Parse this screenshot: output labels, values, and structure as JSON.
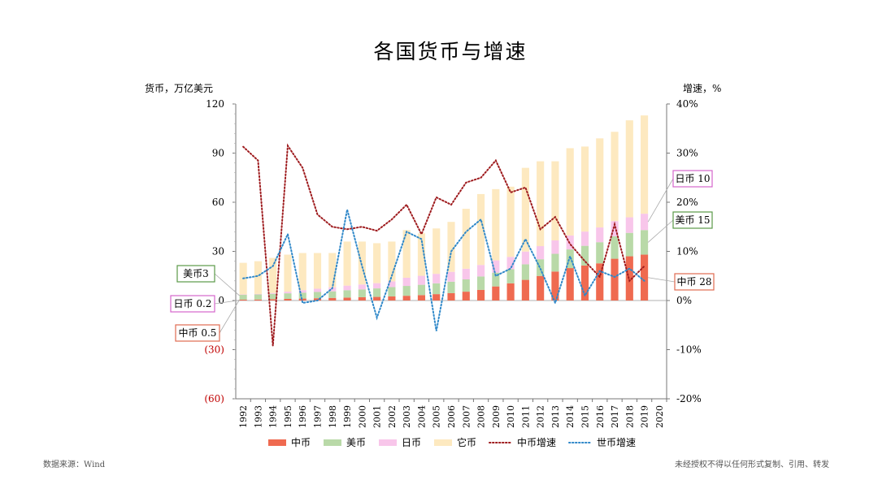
{
  "title": "各国货币与增速",
  "source": "数据来源：Wind",
  "disclaimer": "未经授权不得以任何形式复制、引用、转发",
  "chart_data": {
    "type": "bar",
    "stacked": true,
    "ylabel_left": "货币，万亿美元",
    "ylabel_right": "增速，%",
    "y_left_range": [
      -60,
      120
    ],
    "y_left_ticks": [
      "120",
      "90",
      "60",
      "30",
      "0",
      "(30)",
      "(60)"
    ],
    "y_right_range": [
      -20,
      40
    ],
    "y_right_ticks": [
      "40%",
      "30%",
      "20%",
      "10%",
      "0%",
      "-10%",
      "-20%"
    ],
    "x": [
      "1992",
      "1993",
      "1994",
      "1995",
      "1996",
      "1997",
      "1998",
      "1999",
      "2000",
      "2001",
      "2002",
      "2003",
      "2004",
      "2005",
      "2006",
      "2007",
      "2008",
      "2009",
      "2010",
      "2011",
      "2012",
      "2013",
      "2014",
      "2015",
      "2016",
      "2017",
      "2018",
      "2019",
      "2020"
    ],
    "series": [
      {
        "name": "中币",
        "color": "#ef6a50",
        "axis": "left",
        "values": [
          0.5,
          0.6,
          0.8,
          1.0,
          1.2,
          1.4,
          1.6,
          1.8,
          2.0,
          2.2,
          2.5,
          2.9,
          3.3,
          3.9,
          4.5,
          5.4,
          6.5,
          8.6,
          10.5,
          12.6,
          15.0,
          17.7,
          19.8,
          21.4,
          22.7,
          25.5,
          27.0,
          28.0,
          null
        ]
      },
      {
        "name": "美币",
        "color": "#b9d9a8",
        "axis": "left",
        "values": [
          3.0,
          3.1,
          3.3,
          3.4,
          3.6,
          3.8,
          4.0,
          4.5,
          4.8,
          5.2,
          5.7,
          6.0,
          6.3,
          6.6,
          7.0,
          7.5,
          8.2,
          8.4,
          8.6,
          9.5,
          10.2,
          10.8,
          11.4,
          12.0,
          12.9,
          13.7,
          14.3,
          15.0,
          null
        ]
      },
      {
        "name": "日币",
        "color": "#f8c6ea",
        "axis": "left",
        "values": [
          0.2,
          0.3,
          0.5,
          1.0,
          1.5,
          2.0,
          2.5,
          2.8,
          3.0,
          3.2,
          3.5,
          5.0,
          5.5,
          5.8,
          6.0,
          6.5,
          7.0,
          7.5,
          7.5,
          7.8,
          8.0,
          8.2,
          8.5,
          8.7,
          9.0,
          9.3,
          9.5,
          10.0,
          null
        ]
      },
      {
        "name": "它币",
        "color": "#fde9c0",
        "axis": "left",
        "values": [
          19.3,
          20.0,
          21.4,
          22.6,
          22.7,
          21.8,
          20.9,
          26.9,
          26.2,
          24.4,
          24.3,
          29.1,
          25.9,
          27.7,
          30.5,
          36.6,
          43.3,
          43.5,
          42.9,
          51.1,
          51.8,
          48.3,
          53.3,
          51.9,
          54.4,
          54.5,
          59.2,
          60.0,
          null
        ]
      },
      {
        "name": "中币增速",
        "color": "#9e1b1e",
        "axis": "right",
        "style": "dotted",
        "values": [
          31.3,
          28.5,
          -9.2,
          31.5,
          27.0,
          17.5,
          15.0,
          14.5,
          15.0,
          14.2,
          16.5,
          19.5,
          13.5,
          21.0,
          19.5,
          24.0,
          25.0,
          28.5,
          22.0,
          23.0,
          14.5,
          17.0,
          11.5,
          8.0,
          4.8,
          15.5,
          4.0,
          7.0,
          null
        ]
      },
      {
        "name": "世币增速",
        "color": "#2f88c9",
        "axis": "right",
        "style": "dotted",
        "values": [
          4.5,
          5.0,
          7.0,
          13.5,
          -0.5,
          0.0,
          2.5,
          18.5,
          7.0,
          -3.5,
          5.0,
          14.0,
          12.5,
          -6.2,
          10.0,
          14.0,
          16.5,
          5.0,
          6.5,
          12.5,
          6.5,
          -0.5,
          9.0,
          1.0,
          6.0,
          4.8,
          6.5,
          4.0,
          null
        ]
      }
    ],
    "annotations_left": [
      {
        "text": "美币3",
        "color": "#5a9a48",
        "value": 3.0
      },
      {
        "text": "日币 0.2",
        "color": "#d466cc",
        "value": 0.2
      },
      {
        "text": "中币 0.5",
        "color": "#e06a50",
        "value": 0.5
      }
    ],
    "annotations_right": [
      {
        "text": "日币 10",
        "color": "#d466cc",
        "value": 10.0
      },
      {
        "text": "美币 15",
        "color": "#5a9a48",
        "value": 15.0
      },
      {
        "text": "中币 28",
        "color": "#e06a50",
        "value": 28.0
      }
    ],
    "legend": [
      "中币",
      "美币",
      "日币",
      "它币",
      "中币增速",
      "世币增速"
    ],
    "legend_position": "bottom"
  }
}
